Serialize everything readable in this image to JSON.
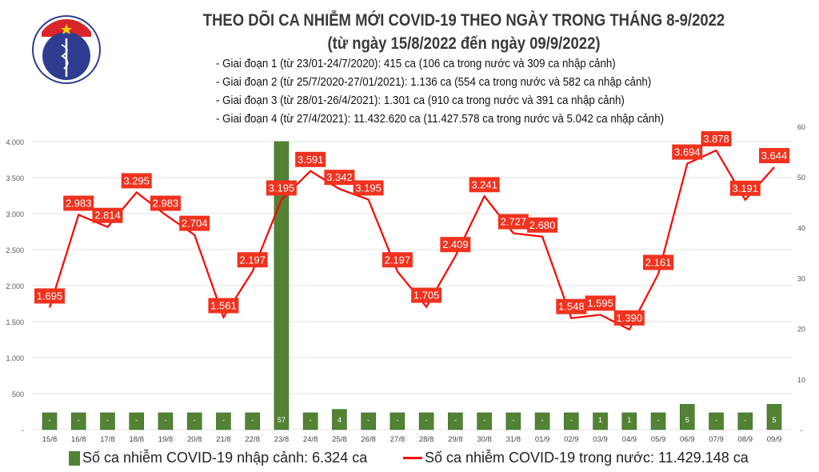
{
  "header": {
    "logo_text": "BỘ Y TẾ",
    "logo_subtext": "MINISTRY OF HEALTH",
    "title": "THEO DÕI CA NHIỄM MỚI COVID-19 THEO NGÀY TRONG THÁNG 8-9/2022",
    "subtitle": "(từ ngày 15/8/2022 đến ngày 09/9/2022)",
    "stages": [
      "- Giai đoạn 1 (từ 23/01-24/7/2020): 415 ca (106 ca trong nước và 309 ca nhập cảnh)",
      "- Giai đoạn 2 (từ 25/7/2020-27/01/2021): 1.136 ca (554 ca trong nước và 582 ca nhập cảnh)",
      "- Giai đoạn 3 (từ 28/01-26/4/2021): 1.301 ca (910 ca trong nước và 391 ca nhập cảnh)",
      "- Giai đoạn 4 (từ 27/4/2021): 11.432.620 ca (11.427.578 ca trong nước và 5.042 ca nhập cảnh)"
    ]
  },
  "chart_data": {
    "type": "bar+line",
    "categories": [
      "15/8",
      "16/8",
      "17/8",
      "18/8",
      "19/8",
      "20/8",
      "21/8",
      "22/8",
      "23/8",
      "24/8",
      "25/8",
      "26/8",
      "27/8",
      "28/8",
      "29/8",
      "30/8",
      "31/8",
      "01/9",
      "02/9",
      "03/9",
      "04/9",
      "05/9",
      "06/9",
      "07/9",
      "08/9",
      "09/9"
    ],
    "series": [
      {
        "name": "Số ca nhiễm COVID-19 nhập cảnh: 6.324 ca",
        "type": "bar",
        "axis": "right",
        "color": "#548235",
        "values": [
          0,
          0,
          0,
          0,
          0,
          0,
          0,
          0,
          57,
          0,
          4,
          0,
          0,
          0,
          0,
          0,
          0,
          0,
          0,
          1,
          1,
          0,
          5,
          0,
          0,
          5
        ],
        "labels": [
          "-",
          "-",
          "-",
          "-",
          "-",
          "-",
          "-",
          "-",
          "57",
          "-",
          "4",
          "-",
          "-",
          "-",
          "-",
          "-",
          "-",
          "-",
          "-",
          "1",
          "1",
          "-",
          "5",
          "-",
          "-",
          "5"
        ]
      },
      {
        "name": "Số ca nhiễm COVID-19 trong nước: 11.429.148 ca",
        "type": "line",
        "axis": "left",
        "color": "#ff0000",
        "values": [
          1695,
          2983,
          2814,
          3295,
          2983,
          2704,
          1561,
          2197,
          3195,
          3591,
          3342,
          3195,
          2197,
          1705,
          2409,
          3241,
          2727,
          2680,
          1548,
          1595,
          1390,
          2161,
          3694,
          3878,
          3191,
          3644
        ],
        "labels": [
          "1.695",
          "2.983",
          "2.814",
          "3.295",
          "2.983",
          "2.704",
          "1.561",
          "2.197",
          "3.195",
          "3.591",
          "3.342",
          "3.195",
          "2.197",
          "1.705",
          "2.409",
          "3.241",
          "2.727",
          "2.680",
          "1.548",
          "1.595",
          "1.390",
          "2.161",
          "3.694",
          "3.878",
          "3.191",
          "3.644"
        ]
      }
    ],
    "left_axis": {
      "range": [
        0,
        4000
      ],
      "ticks": [
        "-",
        "500",
        "1.000",
        "1.500",
        "2.000",
        "2.500",
        "3.000",
        "3.500",
        "4.000"
      ]
    },
    "right_axis": {
      "range": [
        0,
        60
      ],
      "ticks": [
        "-",
        "10",
        "20",
        "30",
        "40",
        "50",
        "60"
      ]
    },
    "grid": true,
    "legend": "bottom"
  }
}
